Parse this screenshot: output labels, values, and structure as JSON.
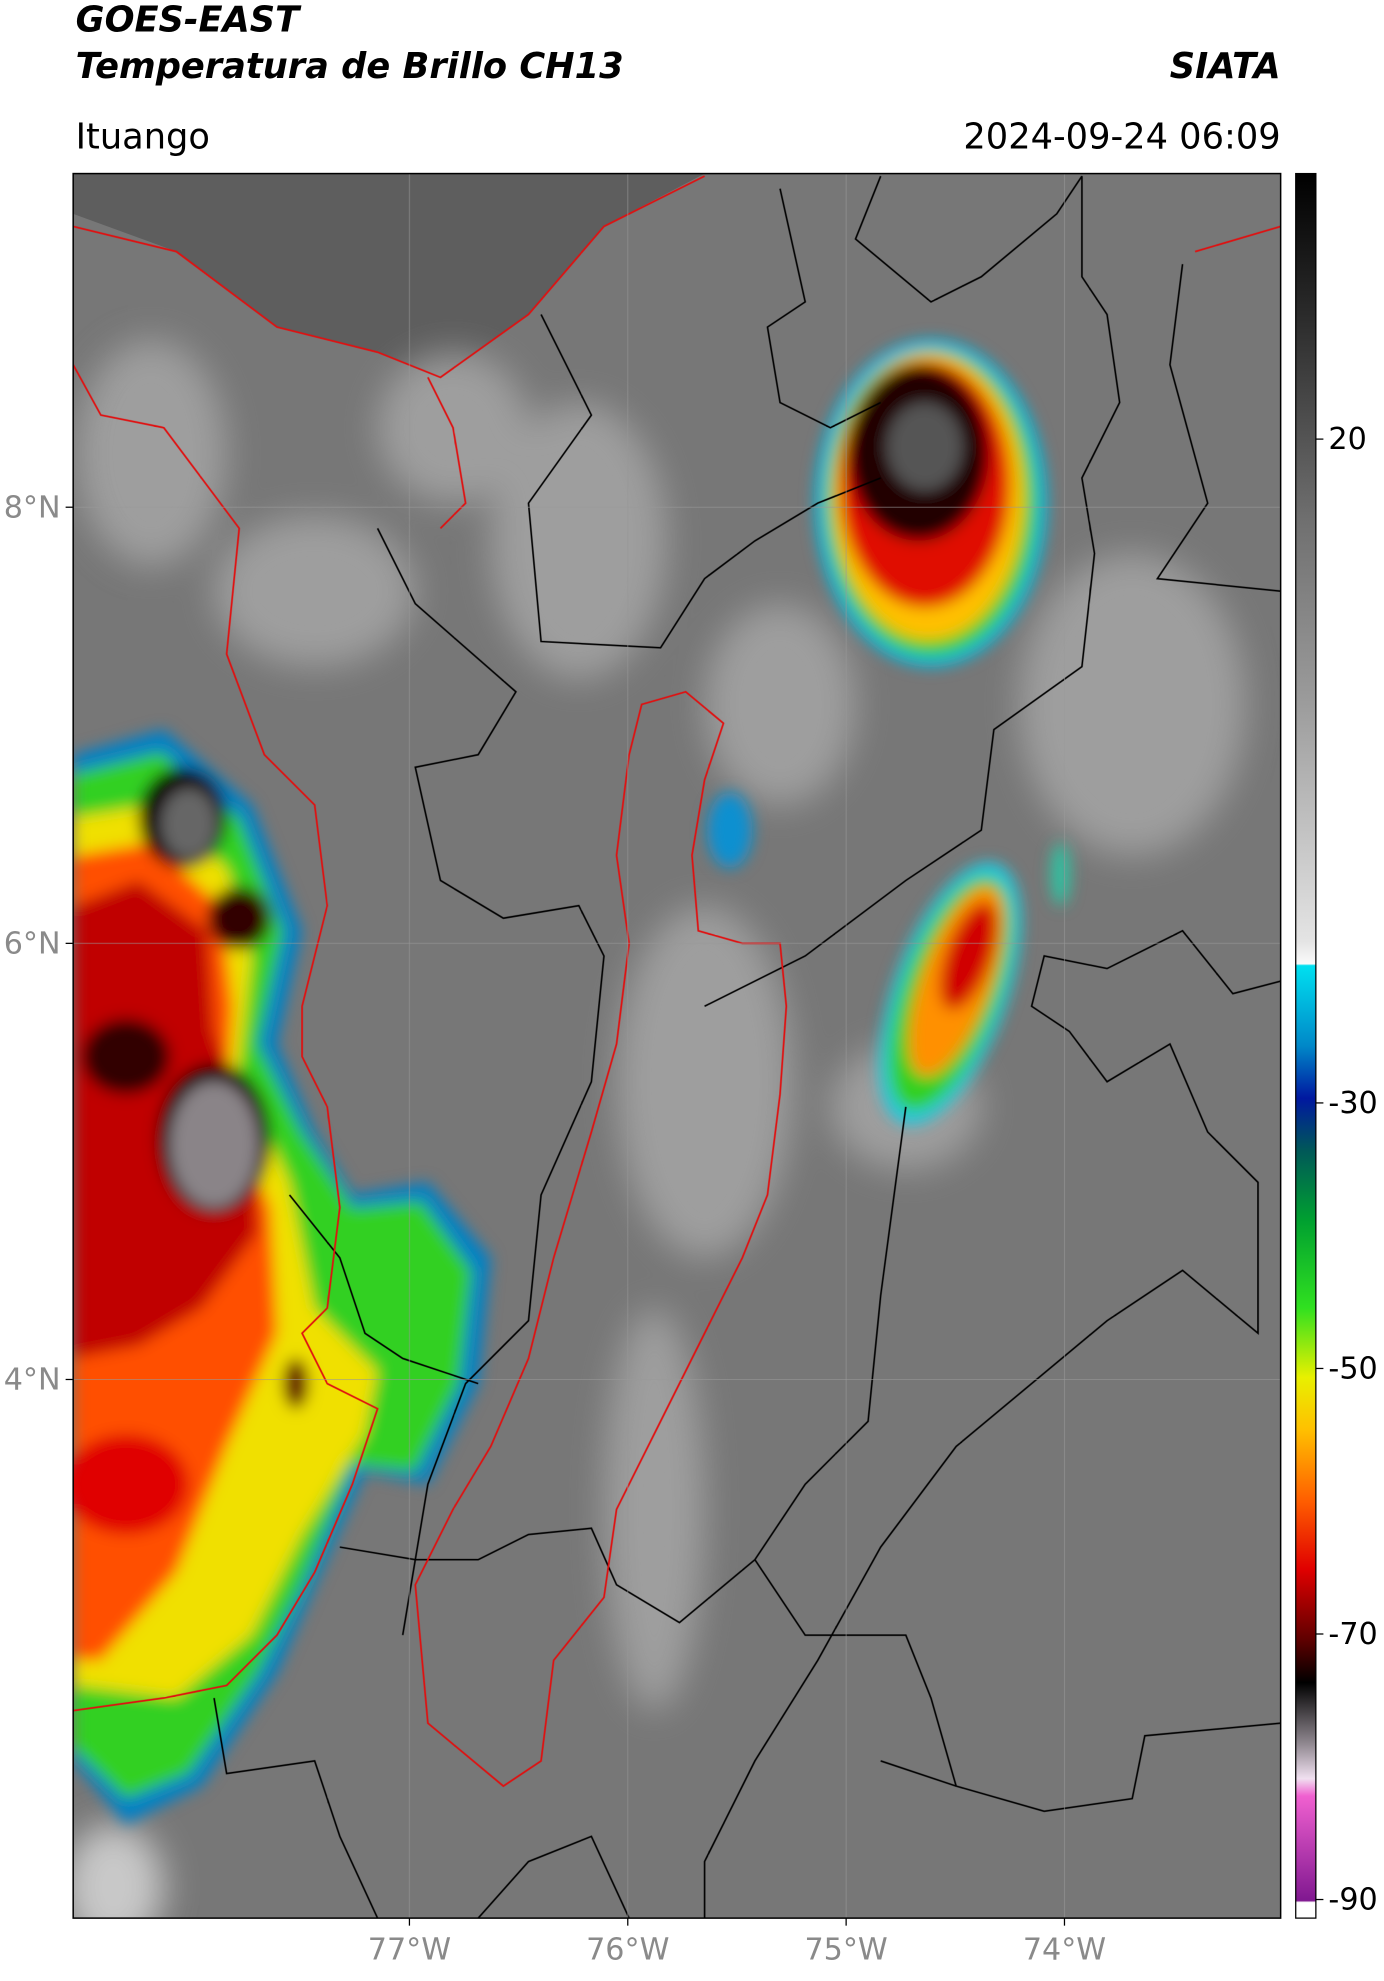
{
  "header": {
    "title": "GOES-EAST",
    "subtitle": "Temperatura de Brillo CH13",
    "source": "SIATA",
    "location": "Ituango",
    "datetime": "2024-09-24 06:09"
  },
  "map": {
    "lon_range": [
      -78.54,
      -73.01
    ],
    "lat_range": [
      1.53,
      9.53
    ],
    "lon_ticks": [
      {
        "value": -77,
        "label": "77°W"
      },
      {
        "value": -76,
        "label": "76°W"
      },
      {
        "value": -75,
        "label": "75°W"
      },
      {
        "value": -74,
        "label": "74°W"
      }
    ],
    "lat_ticks": [
      {
        "value": 4,
        "label": "4°N"
      },
      {
        "value": 6,
        "label": "6°N"
      },
      {
        "value": 8,
        "label": "8°N"
      }
    ]
  },
  "colorbar": {
    "range": [
      -91.4,
      40
    ],
    "ticks": [
      -90,
      -70,
      -50,
      -30,
      20
    ]
  }
}
